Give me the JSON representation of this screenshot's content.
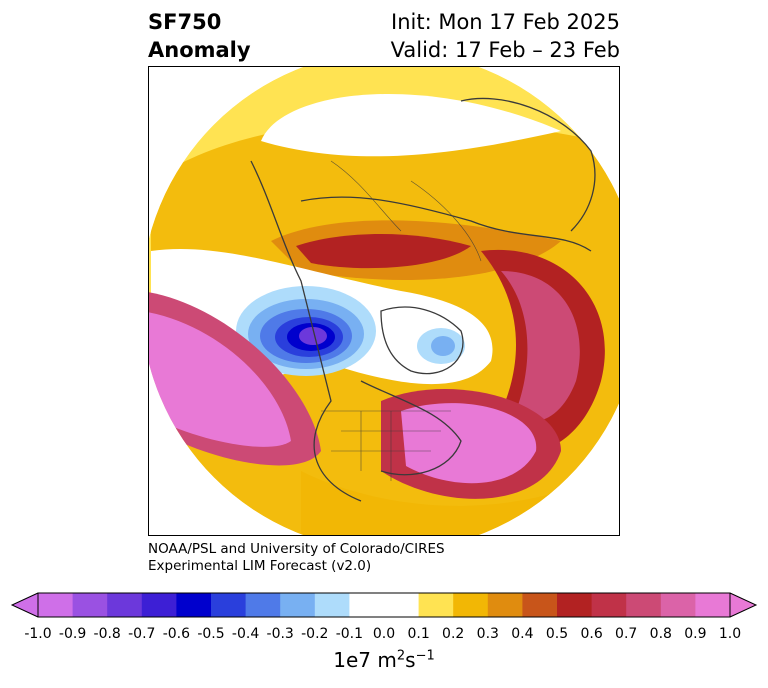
{
  "title": {
    "left_line1": "SF750",
    "left_line2": "Anomaly",
    "right_line1": "Init: Mon 17 Feb 2025",
    "right_line2": "Valid: 17 Feb – 23 Feb"
  },
  "credit": {
    "line1": "NOAA/PSL and University of Colorado/CIRES",
    "line2": "Experimental LIM Forecast (v2.0)"
  },
  "colorbar": {
    "ticks": [
      "-1.0",
      "-0.9",
      "-0.8",
      "-0.7",
      "-0.6",
      "-0.5",
      "-0.4",
      "-0.3",
      "-0.2",
      "-0.1",
      "0.0",
      "0.1",
      "0.2",
      "0.3",
      "0.4",
      "0.5",
      "0.6",
      "0.7",
      "0.8",
      "0.9",
      "1.0"
    ],
    "colors": [
      "#cf6fe8",
      "#9a51e2",
      "#6c38db",
      "#3d1fd5",
      "#0000cd",
      "#2a3fdc",
      "#4f7ae8",
      "#78b0f2",
      "#aedcfb",
      "#ffffff",
      "#ffffff",
      "#ffe352",
      "#f2b705",
      "#e08c0f",
      "#c8551a",
      "#b22222",
      "#c03248",
      "#cc4a75",
      "#db63a8",
      "#e879d6"
    ],
    "units_main": "1e7 m",
    "units_sup1": "2",
    "units_mid": "s",
    "units_sup2": "−1"
  },
  "palette": {
    "yellow": "#ffe352",
    "gold": "#f2b705",
    "orange": "#e08c0f",
    "burnt": "#c8551a",
    "red": "#b22222",
    "crimson": "#c03248",
    "rose": "#cc4a75",
    "pink": "#db63a8",
    "magenta": "#e879d6",
    "lightblue": "#aedcfb",
    "skyblue": "#78b0f2",
    "blue": "#4f7ae8",
    "royal": "#2a3fdc",
    "navy": "#0000cd",
    "indigo": "#3d1fd5",
    "violet": "#6c38db",
    "coast": "#3a3a3a"
  }
}
